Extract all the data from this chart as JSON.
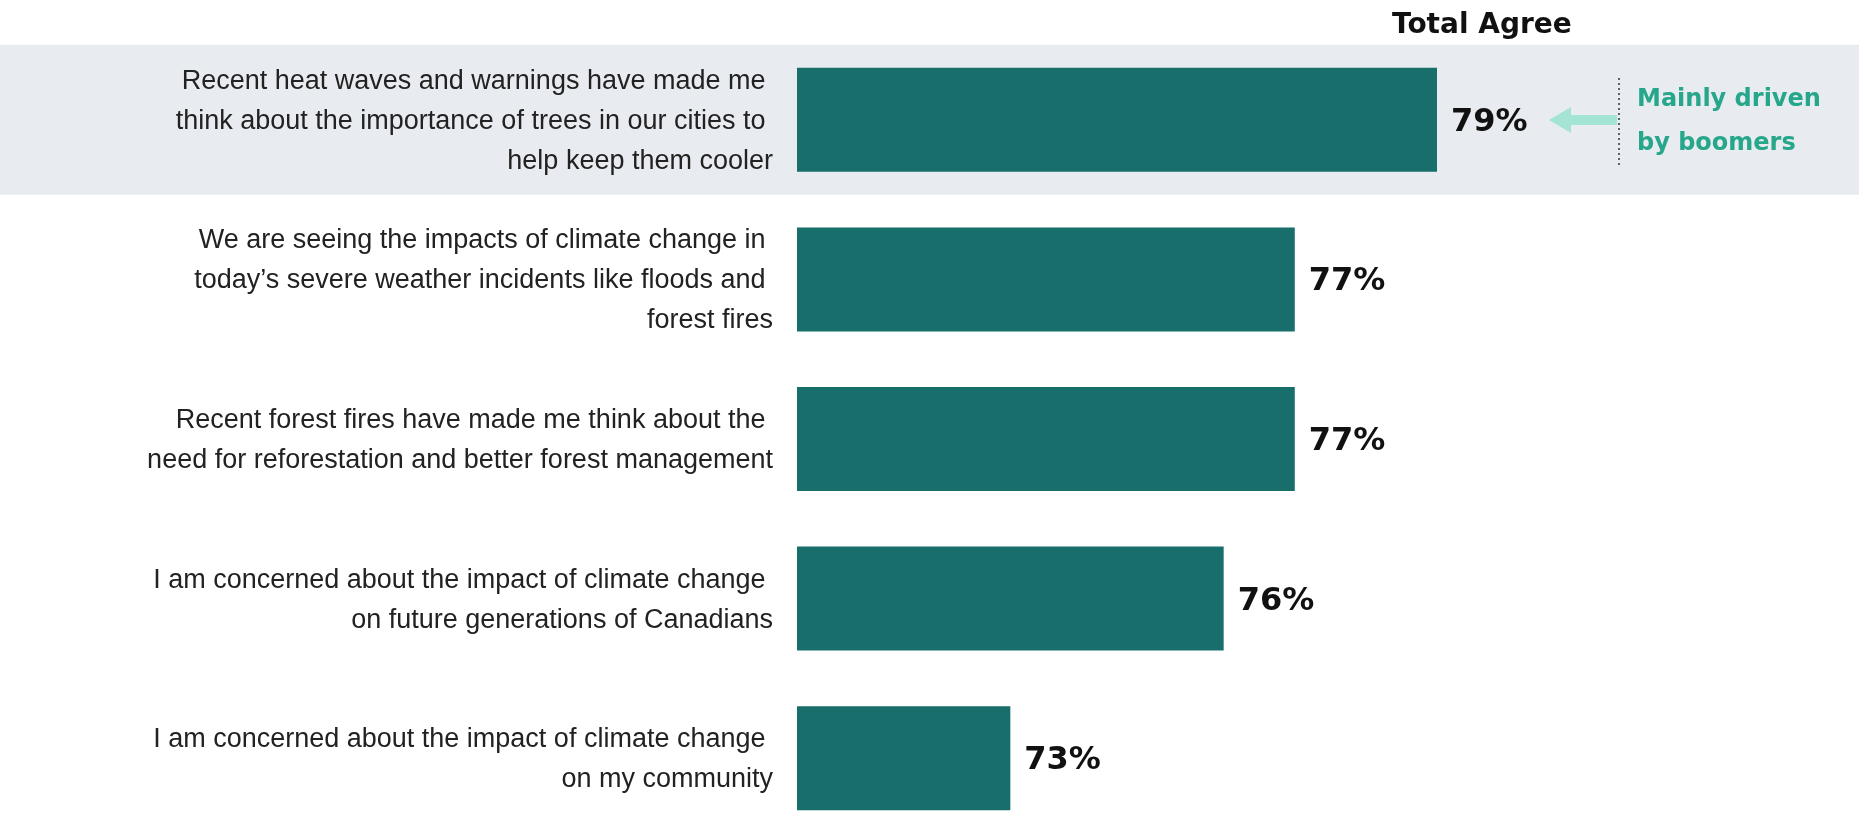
{
  "chart_data": {
    "type": "bar",
    "orientation": "horizontal",
    "title": "Total Agree",
    "categories": [
      "Recent heat waves and warnings have made me think about the importance of trees in our cities to help keep them cooler",
      "We are seeing the impacts of climate change in today’s severe weather incidents like floods and forest fires",
      "Recent forest fires have made me think about the need for reforestation and better forest management",
      "I am concerned about the impact of climate change on future generations of Canadians",
      "I am concerned about the impact of climate change on my community"
    ],
    "values": [
      79,
      77,
      77,
      76,
      73
    ],
    "value_labels": [
      "79%",
      "77%",
      "77%",
      "76%",
      "73%"
    ],
    "color": "#176e6a",
    "xlim": [
      70,
      79
    ],
    "tick_labels": "y",
    "grid": false,
    "bands": [
      {
        "axis": "y",
        "from": "Recent heat waves and warnings have made me think about the importance of trees in our cities to help keep them cooler",
        "to": "Recent heat waves and warnings have made me think about the importance of trees in our cities to help keep them cooler",
        "color": "#e8ebef"
      }
    ],
    "annotations": [
      "Mainly driven by boomers"
    ]
  }
}
